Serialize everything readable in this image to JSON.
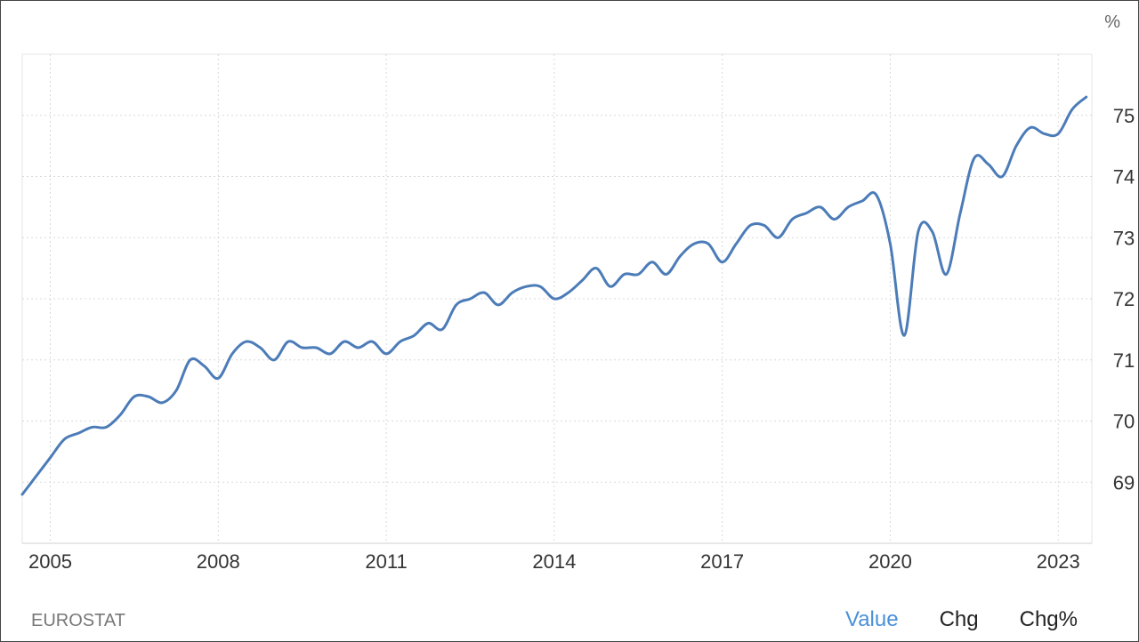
{
  "source": "EUROSTAT",
  "tabs": [
    {
      "label": "Value",
      "active": true
    },
    {
      "label": "Chg",
      "active": false
    },
    {
      "label": "Chg%",
      "active": false
    }
  ],
  "colors": {
    "line": "#4c7cb8",
    "active_tab": "#4a90d9"
  },
  "chart_data": {
    "type": "line",
    "title": "",
    "xlabel": "",
    "ylabel": "",
    "unit": "%",
    "yticks": [
      69,
      70,
      71,
      72,
      73,
      74,
      75
    ],
    "xticks": [
      "2005",
      "2008",
      "2011",
      "2014",
      "2017",
      "2020",
      "2023"
    ],
    "xlim": [
      2004.5,
      2023.6
    ],
    "ylim": [
      68.0,
      76.0
    ],
    "grid": true,
    "y_axis_side": "right",
    "series": [
      {
        "values": [
          [
            2004.5,
            68.8
          ],
          [
            2004.75,
            69.1
          ],
          [
            2005.0,
            69.4
          ],
          [
            2005.25,
            69.7
          ],
          [
            2005.5,
            69.8
          ],
          [
            2005.75,
            69.9
          ],
          [
            2006.0,
            69.9
          ],
          [
            2006.25,
            70.1
          ],
          [
            2006.5,
            70.4
          ],
          [
            2006.75,
            70.4
          ],
          [
            2007.0,
            70.3
          ],
          [
            2007.25,
            70.5
          ],
          [
            2007.5,
            71.0
          ],
          [
            2007.75,
            70.9
          ],
          [
            2008.0,
            70.7
          ],
          [
            2008.25,
            71.1
          ],
          [
            2008.5,
            71.3
          ],
          [
            2008.75,
            71.2
          ],
          [
            2009.0,
            71.0
          ],
          [
            2009.25,
            71.3
          ],
          [
            2009.5,
            71.2
          ],
          [
            2009.75,
            71.2
          ],
          [
            2010.0,
            71.1
          ],
          [
            2010.25,
            71.3
          ],
          [
            2010.5,
            71.2
          ],
          [
            2010.75,
            71.3
          ],
          [
            2011.0,
            71.1
          ],
          [
            2011.25,
            71.3
          ],
          [
            2011.5,
            71.4
          ],
          [
            2011.75,
            71.6
          ],
          [
            2012.0,
            71.5
          ],
          [
            2012.25,
            71.9
          ],
          [
            2012.5,
            72.0
          ],
          [
            2012.75,
            72.1
          ],
          [
            2013.0,
            71.9
          ],
          [
            2013.25,
            72.1
          ],
          [
            2013.5,
            72.2
          ],
          [
            2013.75,
            72.2
          ],
          [
            2014.0,
            72.0
          ],
          [
            2014.25,
            72.1
          ],
          [
            2014.5,
            72.3
          ],
          [
            2014.75,
            72.5
          ],
          [
            2015.0,
            72.2
          ],
          [
            2015.25,
            72.4
          ],
          [
            2015.5,
            72.4
          ],
          [
            2015.75,
            72.6
          ],
          [
            2016.0,
            72.4
          ],
          [
            2016.25,
            72.7
          ],
          [
            2016.5,
            72.9
          ],
          [
            2016.75,
            72.9
          ],
          [
            2017.0,
            72.6
          ],
          [
            2017.25,
            72.9
          ],
          [
            2017.5,
            73.2
          ],
          [
            2017.75,
            73.2
          ],
          [
            2018.0,
            73.0
          ],
          [
            2018.25,
            73.3
          ],
          [
            2018.5,
            73.4
          ],
          [
            2018.75,
            73.5
          ],
          [
            2019.0,
            73.3
          ],
          [
            2019.25,
            73.5
          ],
          [
            2019.5,
            73.6
          ],
          [
            2019.75,
            73.7
          ],
          [
            2020.0,
            72.9
          ],
          [
            2020.25,
            71.4
          ],
          [
            2020.5,
            73.1
          ],
          [
            2020.75,
            73.1
          ],
          [
            2021.0,
            72.4
          ],
          [
            2021.25,
            73.4
          ],
          [
            2021.5,
            74.3
          ],
          [
            2021.75,
            74.2
          ],
          [
            2022.0,
            74.0
          ],
          [
            2022.25,
            74.5
          ],
          [
            2022.5,
            74.8
          ],
          [
            2022.75,
            74.7
          ],
          [
            2023.0,
            74.7
          ],
          [
            2023.25,
            75.1
          ],
          [
            2023.5,
            75.3
          ]
        ]
      }
    ]
  }
}
